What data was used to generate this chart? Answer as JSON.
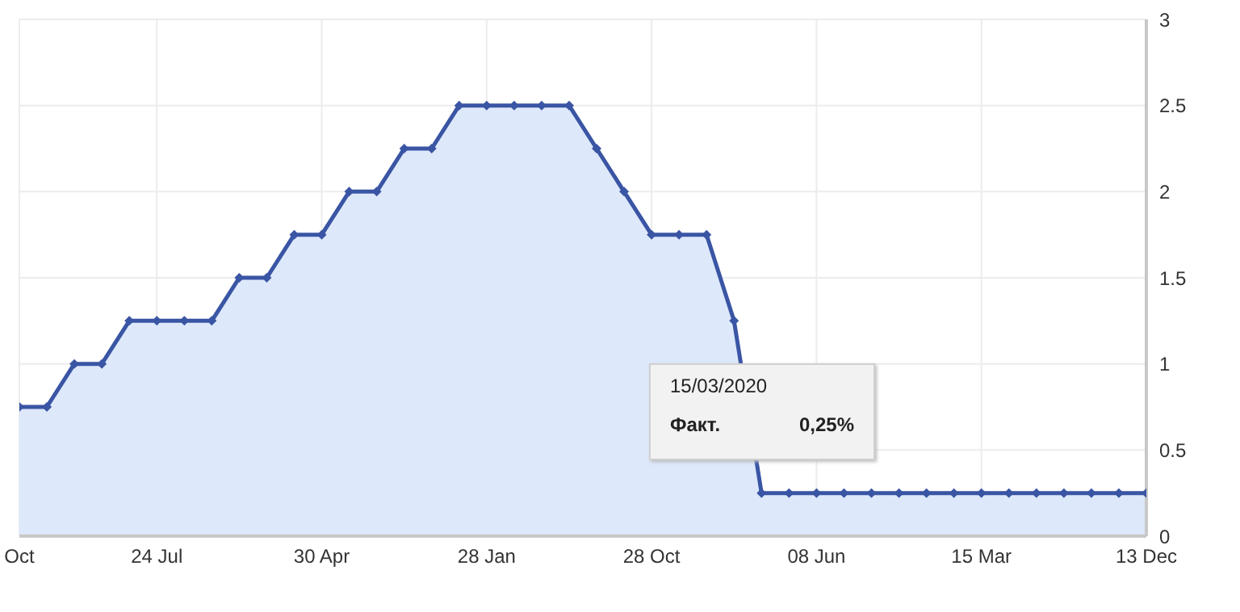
{
  "chart_data": {
    "type": "area",
    "categories": [
      "Oct",
      null,
      null,
      null,
      null,
      "24 Jul",
      null,
      null,
      null,
      null,
      null,
      "30 Apr",
      null,
      null,
      null,
      null,
      null,
      "28 Jan",
      null,
      null,
      null,
      null,
      null,
      "28 Oct",
      null,
      null,
      null,
      null,
      null,
      "08 Jun",
      null,
      null,
      null,
      null,
      null,
      "15 Mar",
      null,
      null,
      null,
      null,
      null,
      "13 Dec"
    ],
    "series": [
      {
        "color": "#3a55a4",
        "values": [
          0.75,
          0.75,
          1,
          1,
          1.25,
          1.25,
          1.25,
          1.25,
          1.5,
          1.5,
          1.75,
          1.75,
          2,
          2,
          2.25,
          2.25,
          2.5,
          2.5,
          2.5,
          2.5,
          2.5,
          2.25,
          2,
          1.75,
          1.75,
          1.75,
          1.25,
          0.25,
          0.25,
          0.25,
          0.25,
          0.25,
          0.25,
          0.25,
          0.25,
          0.25,
          0.25,
          0.25,
          0.25,
          0.25,
          0.25,
          0.25
        ]
      }
    ],
    "ylim": [
      0,
      3
    ],
    "yticks": [
      0,
      0.5,
      1,
      1.5,
      2,
      2.5,
      3
    ],
    "grid": true,
    "marker": "diamond",
    "line_style": "solid",
    "annotations": [
      "15/03/2020",
      "Факт.",
      "0,25%"
    ]
  }
}
